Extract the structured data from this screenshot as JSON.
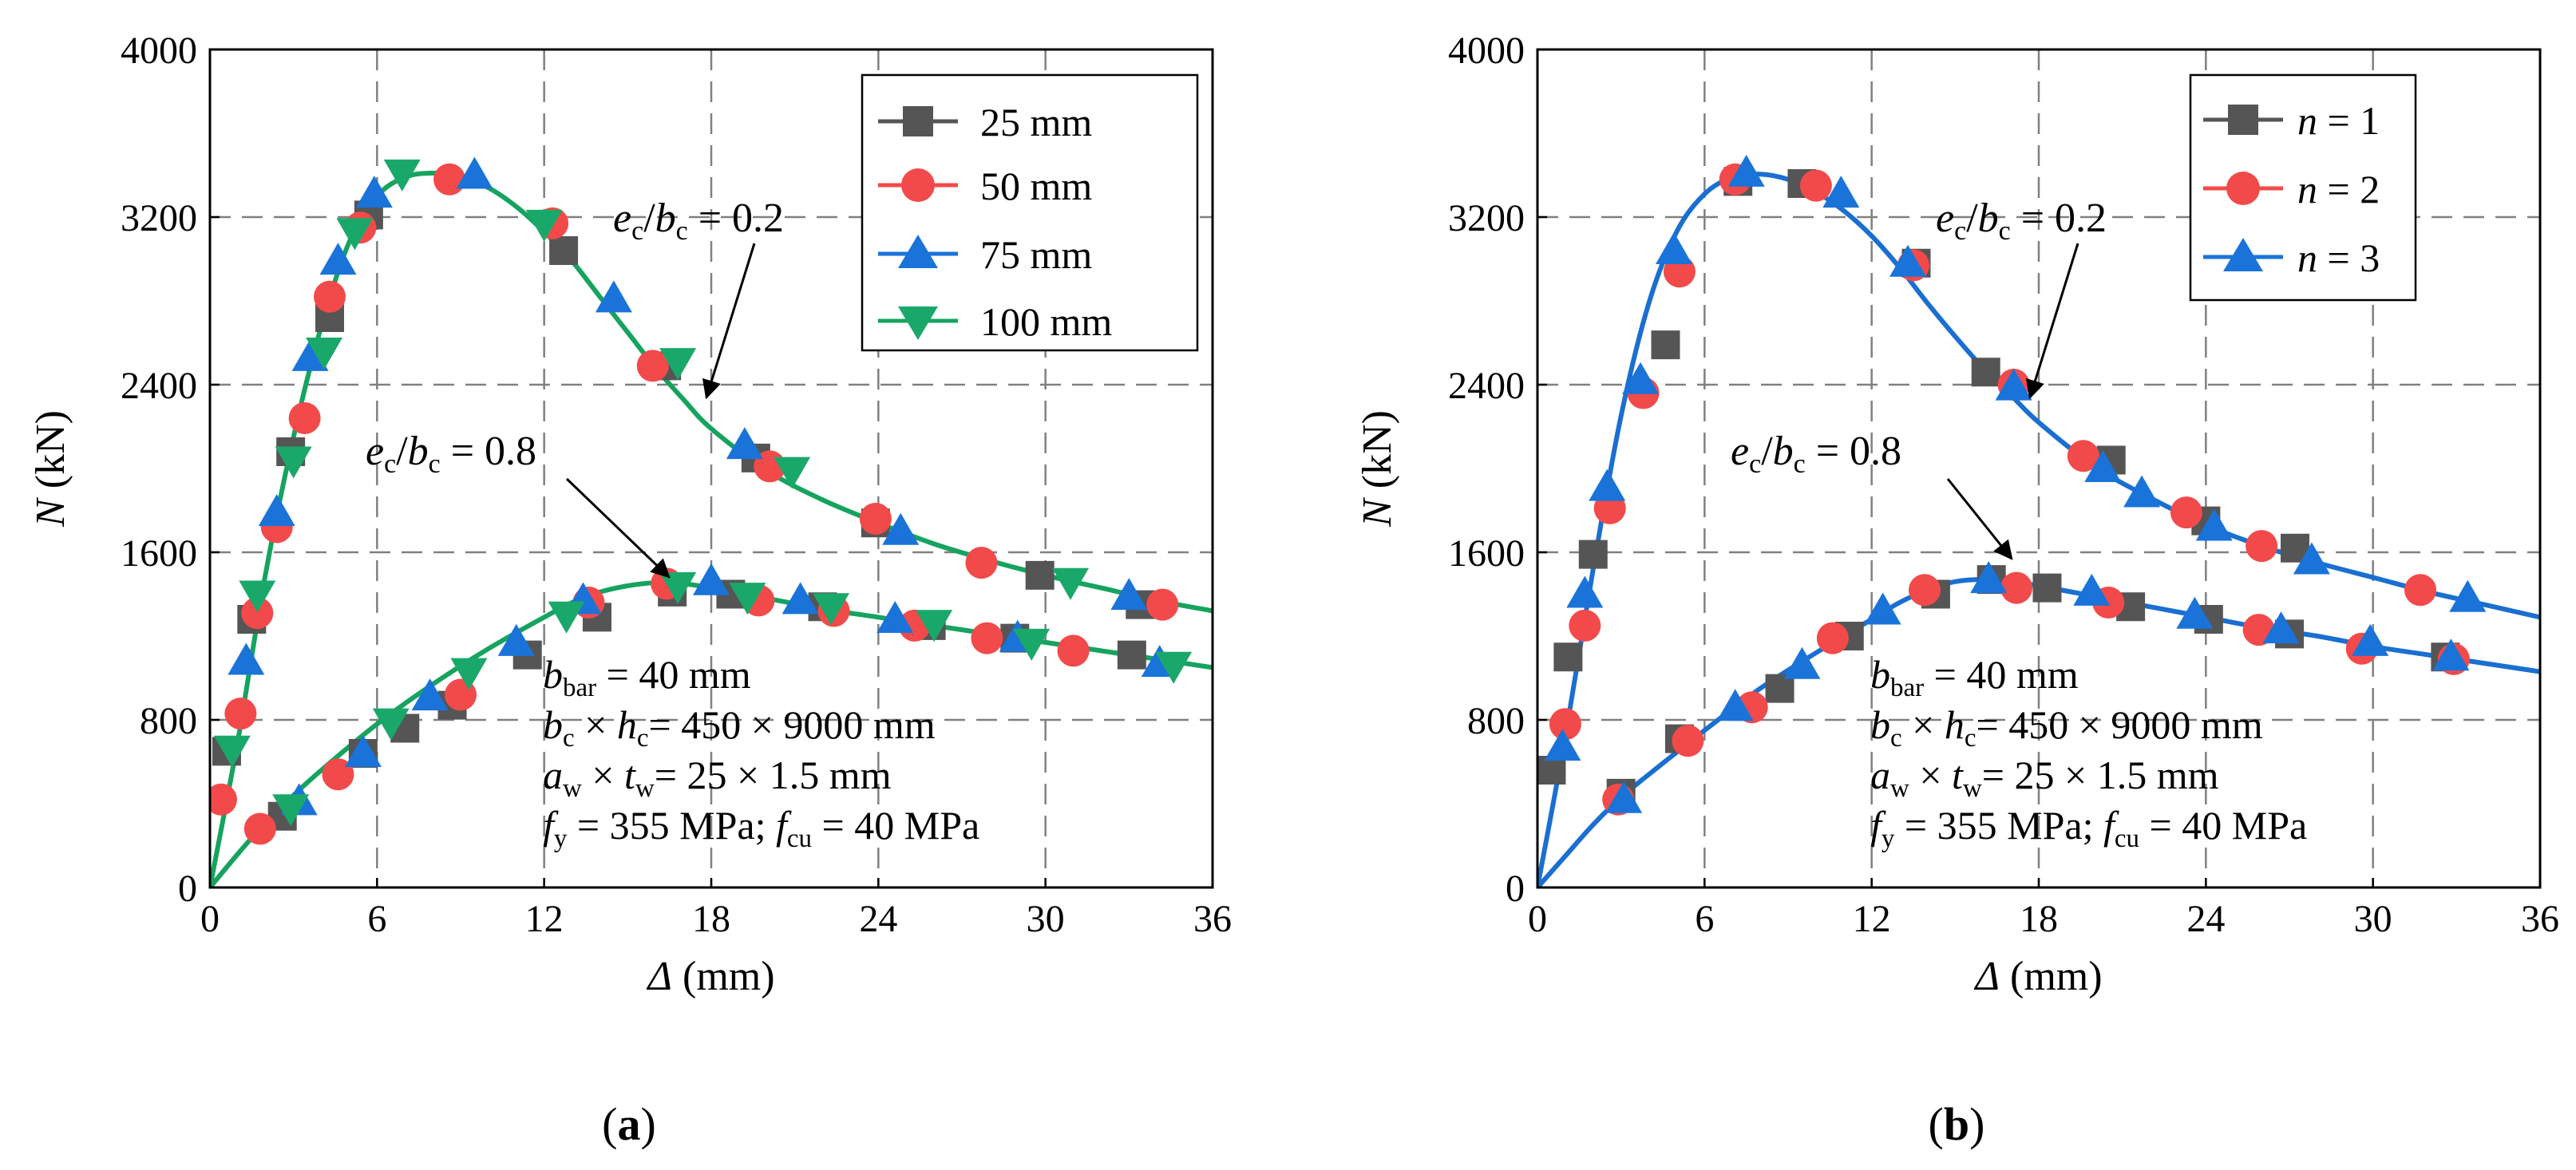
{
  "colors": {
    "s25": "#555555",
    "s50": "#f24a4a",
    "s75": "#1a73d9",
    "s100": "#1aa86a",
    "line_a": "#16a35f",
    "line_b": "#1a6fd0",
    "grid": "#808080"
  },
  "chart_data": [
    {
      "type": "line",
      "panel_label": "(a)",
      "xlabel": "Δ (mm)",
      "ylabel": "N (kN)",
      "xlim": [
        0,
        36
      ],
      "ylim": [
        0,
        4000
      ],
      "xticks": [
        0,
        6,
        12,
        18,
        24,
        30,
        36
      ],
      "yticks": [
        0,
        800,
        1600,
        2400,
        3200,
        4000
      ],
      "grid": true,
      "legend_position": "top-right",
      "legend": [
        "25 mm",
        "50 mm",
        "75 mm",
        "100 mm"
      ],
      "annotations": {
        "upper": "ec/bc = 0.2",
        "lower": "ec/bc = 0.8",
        "params": [
          "bbar = 40 mm",
          "bc × hc= 450 × 9000 mm",
          "aw × tw= 25 × 1.5 mm",
          "fy = 355 MPa; fcu = 40 MPa"
        ]
      },
      "curves": {
        "upper": [
          [
            0,
            0
          ],
          [
            1,
            700
          ],
          [
            2,
            1500
          ],
          [
            3,
            2150
          ],
          [
            4,
            2680
          ],
          [
            5,
            3080
          ],
          [
            6,
            3300
          ],
          [
            7,
            3390
          ],
          [
            8,
            3410
          ],
          [
            9,
            3395
          ],
          [
            10,
            3340
          ],
          [
            11,
            3250
          ],
          [
            12,
            3130
          ],
          [
            13,
            2990
          ],
          [
            14,
            2820
          ],
          [
            15,
            2650
          ],
          [
            16,
            2480
          ],
          [
            17,
            2330
          ],
          [
            18,
            2190
          ],
          [
            20,
            1990
          ],
          [
            22,
            1850
          ],
          [
            24,
            1740
          ],
          [
            26,
            1640
          ],
          [
            28,
            1560
          ],
          [
            30,
            1490
          ],
          [
            32,
            1430
          ],
          [
            34,
            1370
          ],
          [
            36,
            1320
          ]
        ],
        "lower": [
          [
            0,
            0
          ],
          [
            1,
            160
          ],
          [
            2,
            310
          ],
          [
            3,
            440
          ],
          [
            4,
            560
          ],
          [
            6,
            780
          ],
          [
            8,
            970
          ],
          [
            10,
            1140
          ],
          [
            12,
            1290
          ],
          [
            13,
            1360
          ],
          [
            14,
            1410
          ],
          [
            15,
            1440
          ],
          [
            16,
            1455
          ],
          [
            17,
            1450
          ],
          [
            18,
            1430
          ],
          [
            20,
            1380
          ],
          [
            22,
            1330
          ],
          [
            24,
            1290
          ],
          [
            26,
            1250
          ],
          [
            28,
            1210
          ],
          [
            30,
            1170
          ],
          [
            32,
            1130
          ],
          [
            34,
            1090
          ],
          [
            36,
            1050
          ]
        ]
      },
      "series": [
        {
          "name": "25 mm",
          "marker": "square",
          "color_key": "s25",
          "points": [
            [
              0.6,
              650
            ],
            [
              1.5,
              1280
            ],
            [
              2.9,
              2080
            ],
            [
              4.3,
              2720
            ],
            [
              5.7,
              3210
            ],
            [
              12.7,
              3040
            ],
            [
              16.4,
              2490
            ],
            [
              19.6,
              2050
            ],
            [
              23.9,
              1740
            ],
            [
              29.8,
              1490
            ],
            [
              33.4,
              1350
            ],
            [
              2.6,
              340
            ],
            [
              5.5,
              640
            ],
            [
              7.0,
              760
            ],
            [
              8.7,
              870
            ],
            [
              11.4,
              1110
            ],
            [
              13.9,
              1290
            ],
            [
              16.6,
              1410
            ],
            [
              18.7,
              1400
            ],
            [
              22.0,
              1340
            ],
            [
              25.9,
              1250
            ],
            [
              28.9,
              1190
            ],
            [
              33.1,
              1110
            ]
          ]
        },
        {
          "name": "50 mm",
          "marker": "circle",
          "color_key": "s50",
          "points": [
            [
              0.4,
              420
            ],
            [
              1.1,
              830
            ],
            [
              1.7,
              1310
            ],
            [
              2.4,
              1720
            ],
            [
              3.4,
              2240
            ],
            [
              4.3,
              2820
            ],
            [
              5.4,
              3150
            ],
            [
              8.6,
              3380
            ],
            [
              12.3,
              3170
            ],
            [
              15.9,
              2490
            ],
            [
              20.1,
              2010
            ],
            [
              23.9,
              1760
            ],
            [
              27.7,
              1550
            ],
            [
              34.2,
              1350
            ],
            [
              1.8,
              280
            ],
            [
              4.6,
              540
            ],
            [
              9.0,
              920
            ],
            [
              13.6,
              1360
            ],
            [
              16.4,
              1450
            ],
            [
              19.7,
              1370
            ],
            [
              22.4,
              1320
            ],
            [
              25.3,
              1250
            ],
            [
              27.9,
              1190
            ],
            [
              31.0,
              1130
            ]
          ]
        },
        {
          "name": "75 mm",
          "marker": "triangle-up",
          "color_key": "s75",
          "points": [
            [
              1.3,
              1080
            ],
            [
              2.4,
              1790
            ],
            [
              3.6,
              2530
            ],
            [
              4.6,
              2990
            ],
            [
              5.9,
              3310
            ],
            [
              9.5,
              3400
            ],
            [
              14.5,
              2810
            ],
            [
              19.2,
              2110
            ],
            [
              24.8,
              1700
            ],
            [
              33.0,
              1390
            ],
            [
              3.2,
              410
            ],
            [
              5.5,
              640
            ],
            [
              7.9,
              910
            ],
            [
              11.0,
              1170
            ],
            [
              13.4,
              1370
            ],
            [
              18.0,
              1460
            ],
            [
              21.2,
              1370
            ],
            [
              24.6,
              1280
            ],
            [
              29.0,
              1190
            ],
            [
              34.1,
              1070
            ]
          ]
        },
        {
          "name": "100 mm",
          "marker": "triangle-down",
          "color_key": "s100",
          "points": [
            [
              0.8,
              660
            ],
            [
              1.7,
              1400
            ],
            [
              3.0,
              2040
            ],
            [
              4.1,
              2560
            ],
            [
              5.2,
              3130
            ],
            [
              6.9,
              3410
            ],
            [
              12.0,
              3170
            ],
            [
              16.8,
              2510
            ],
            [
              20.9,
              1990
            ],
            [
              30.9,
              1460
            ],
            [
              2.9,
              380
            ],
            [
              6.5,
              790
            ],
            [
              9.3,
              1030
            ],
            [
              12.8,
              1300
            ],
            [
              16.8,
              1440
            ],
            [
              19.3,
              1390
            ],
            [
              22.3,
              1340
            ],
            [
              26.0,
              1260
            ],
            [
              29.5,
              1170
            ],
            [
              34.6,
              1060
            ]
          ]
        }
      ]
    },
    {
      "type": "line",
      "panel_label": "(b)",
      "xlabel": "Δ (mm)",
      "ylabel": "N (kN)",
      "xlim": [
        0,
        36
      ],
      "ylim": [
        0,
        4000
      ],
      "xticks": [
        0,
        6,
        12,
        18,
        24,
        30,
        36
      ],
      "yticks": [
        0,
        800,
        1600,
        2400,
        3200,
        4000
      ],
      "grid": true,
      "legend_position": "top-left",
      "legend": [
        "n = 1",
        "n = 2",
        "n = 3"
      ],
      "annotations": {
        "upper": "ec/bc = 0.2",
        "lower": "ec/bc = 0.8",
        "params": [
          "bbar = 40 mm",
          "bc × hc= 450 × 9000 mm",
          "aw × tw= 25 × 1.5 mm",
          "fy = 355 MPa; fcu = 40 MPa"
        ]
      },
      "curves": {
        "upper": [
          [
            0,
            0
          ],
          [
            1,
            720
          ],
          [
            2,
            1520
          ],
          [
            3,
            2250
          ],
          [
            4,
            2790
          ],
          [
            5,
            3130
          ],
          [
            6,
            3310
          ],
          [
            7,
            3390
          ],
          [
            8,
            3405
          ],
          [
            9,
            3380
          ],
          [
            10,
            3320
          ],
          [
            11,
            3230
          ],
          [
            12,
            3110
          ],
          [
            13,
            2960
          ],
          [
            14,
            2790
          ],
          [
            15,
            2630
          ],
          [
            16,
            2480
          ],
          [
            17,
            2350
          ],
          [
            18,
            2220
          ],
          [
            20,
            2010
          ],
          [
            22,
            1860
          ],
          [
            24,
            1730
          ],
          [
            26,
            1630
          ],
          [
            28,
            1550
          ],
          [
            30,
            1480
          ],
          [
            32,
            1410
          ],
          [
            34,
            1350
          ],
          [
            36,
            1290
          ]
        ],
        "lower": [
          [
            0,
            0
          ],
          [
            1,
            150
          ],
          [
            2,
            300
          ],
          [
            3,
            430
          ],
          [
            4,
            540
          ],
          [
            6,
            750
          ],
          [
            8,
            950
          ],
          [
            10,
            1120
          ],
          [
            12,
            1280
          ],
          [
            13,
            1360
          ],
          [
            14,
            1420
          ],
          [
            15,
            1460
          ],
          [
            16,
            1470
          ],
          [
            17,
            1460
          ],
          [
            18,
            1440
          ],
          [
            20,
            1390
          ],
          [
            22,
            1340
          ],
          [
            24,
            1290
          ],
          [
            26,
            1240
          ],
          [
            28,
            1200
          ],
          [
            30,
            1150
          ],
          [
            32,
            1110
          ],
          [
            34,
            1070
          ],
          [
            36,
            1030
          ]
        ]
      },
      "series": [
        {
          "name": "n = 1",
          "marker": "square",
          "color_key": "s25",
          "points": [
            [
              0.5,
              560
            ],
            [
              1.1,
              1100
            ],
            [
              2.0,
              1590
            ],
            [
              4.6,
              2590
            ],
            [
              7.2,
              3370
            ],
            [
              9.5,
              3360
            ],
            [
              13.6,
              2980
            ],
            [
              16.1,
              2460
            ],
            [
              20.6,
              2040
            ],
            [
              24.0,
              1750
            ],
            [
              27.2,
              1620
            ],
            [
              3.0,
              450
            ],
            [
              5.1,
              710
            ],
            [
              8.7,
              950
            ],
            [
              11.2,
              1200
            ],
            [
              14.3,
              1400
            ],
            [
              16.3,
              1470
            ],
            [
              18.3,
              1430
            ],
            [
              21.3,
              1340
            ],
            [
              24.1,
              1280
            ],
            [
              27.0,
              1210
            ],
            [
              32.6,
              1100
            ]
          ]
        },
        {
          "name": "n = 2",
          "marker": "circle",
          "color_key": "s50",
          "points": [
            [
              1.0,
              780
            ],
            [
              1.7,
              1250
            ],
            [
              2.6,
              1810
            ],
            [
              3.8,
              2360
            ],
            [
              5.1,
              2940
            ],
            [
              7.1,
              3380
            ],
            [
              10.0,
              3350
            ],
            [
              13.5,
              2970
            ],
            [
              17.1,
              2400
            ],
            [
              19.6,
              2060
            ],
            [
              23.3,
              1790
            ],
            [
              26.0,
              1630
            ],
            [
              31.7,
              1420
            ],
            [
              2.9,
              420
            ],
            [
              5.4,
              700
            ],
            [
              7.7,
              860
            ],
            [
              10.6,
              1190
            ],
            [
              13.9,
              1420
            ],
            [
              17.2,
              1430
            ],
            [
              20.5,
              1360
            ],
            [
              25.9,
              1230
            ],
            [
              29.6,
              1140
            ],
            [
              32.9,
              1090
            ]
          ]
        },
        {
          "name": "n = 3",
          "marker": "triangle-up",
          "color_key": "s75",
          "points": [
            [
              0.9,
              670
            ],
            [
              1.7,
              1400
            ],
            [
              2.5,
              1910
            ],
            [
              3.7,
              2420
            ],
            [
              4.9,
              3040
            ],
            [
              7.5,
              3410
            ],
            [
              10.9,
              3310
            ],
            [
              13.3,
              2980
            ],
            [
              17.1,
              2390
            ],
            [
              20.3,
              2000
            ],
            [
              21.7,
              1880
            ],
            [
              24.3,
              1720
            ],
            [
              27.8,
              1560
            ],
            [
              33.4,
              1380
            ],
            [
              3.1,
              420
            ],
            [
              7.1,
              860
            ],
            [
              9.5,
              1060
            ],
            [
              12.4,
              1320
            ],
            [
              16.2,
              1470
            ],
            [
              19.9,
              1410
            ],
            [
              23.6,
              1300
            ],
            [
              26.7,
              1230
            ],
            [
              29.9,
              1170
            ],
            [
              32.8,
              1100
            ]
          ]
        }
      ]
    }
  ]
}
